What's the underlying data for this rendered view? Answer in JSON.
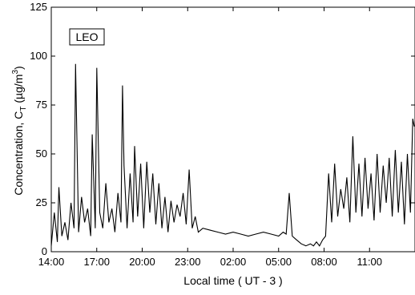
{
  "chart_data": {
    "type": "line",
    "title": "",
    "xlabel": "Local time ( UT - 3 )",
    "ylabel_main": "Concentration, C",
    "ylabel_sub": "T",
    "ylabel_unit_pre": " (µg/m",
    "ylabel_unit_sup": "3",
    "ylabel_unit_post": ")",
    "ylim": [
      0,
      125
    ],
    "xlim": [
      14.0,
      38.0
    ],
    "x_ticks": [
      {
        "value": 14,
        "label": "14:00"
      },
      {
        "value": 17,
        "label": "17:00"
      },
      {
        "value": 20,
        "label": "20:00"
      },
      {
        "value": 23,
        "label": "23:00"
      },
      {
        "value": 26,
        "label": "02:00"
      },
      {
        "value": 29,
        "label": "05:00"
      },
      {
        "value": 32,
        "label": "08:00"
      },
      {
        "value": 35,
        "label": "11:00"
      }
    ],
    "y_ticks": [
      0,
      25,
      50,
      75,
      100,
      125
    ],
    "legend": "LEO",
    "legend_position": "top-left",
    "grid": false,
    "series": [
      {
        "x": [
          14.0,
          14.2,
          14.4,
          14.5,
          14.7,
          14.9,
          15.1,
          15.3,
          15.5,
          15.6,
          15.8,
          16.0,
          16.2,
          16.4,
          16.6,
          16.7,
          16.9,
          17.0,
          17.2,
          17.4,
          17.6,
          17.8,
          18.0,
          18.2,
          18.4,
          18.6,
          18.7,
          18.8,
          19.0,
          19.2,
          19.4,
          19.5,
          19.7,
          19.9,
          20.1,
          20.3,
          20.5,
          20.7,
          20.9,
          21.1,
          21.3,
          21.5,
          21.7,
          21.9,
          22.1,
          22.3,
          22.5,
          22.7,
          22.9,
          23.1,
          23.3,
          23.5,
          23.7,
          24.0,
          24.5,
          25.0,
          25.5,
          26.0,
          26.5,
          27.0,
          27.5,
          28.0,
          28.5,
          29.0,
          29.3,
          29.5,
          29.7,
          29.9,
          30.2,
          30.5,
          30.8,
          31.1,
          31.3,
          31.5,
          31.7,
          31.9,
          32.1,
          32.3,
          32.5,
          32.7,
          32.9,
          33.1,
          33.3,
          33.5,
          33.7,
          33.9,
          34.1,
          34.3,
          34.5,
          34.7,
          34.9,
          35.1,
          35.3,
          35.5,
          35.7,
          35.9,
          36.1,
          36.3,
          36.5,
          36.7,
          36.9,
          37.1,
          37.3,
          37.5,
          37.7,
          37.85,
          37.95
        ],
        "y": [
          3,
          20,
          5,
          33,
          8,
          15,
          6,
          25,
          12,
          96,
          10,
          28,
          15,
          22,
          8,
          60,
          12,
          94,
          20,
          12,
          35,
          15,
          22,
          10,
          30,
          15,
          85,
          44,
          12,
          40,
          15,
          54,
          18,
          45,
          12,
          46,
          20,
          40,
          14,
          35,
          12,
          28,
          10,
          26,
          15,
          24,
          18,
          30,
          14,
          42,
          12,
          18,
          10,
          12,
          11,
          10,
          9,
          10,
          9,
          8,
          9,
          10,
          9,
          8,
          10,
          9,
          30,
          8,
          6,
          4,
          3,
          4,
          3,
          5,
          3,
          6,
          8,
          40,
          15,
          45,
          18,
          32,
          22,
          38,
          15,
          59,
          20,
          45,
          18,
          48,
          22,
          40,
          16,
          50,
          20,
          44,
          25,
          48,
          18,
          52,
          20,
          46,
          14,
          50,
          20,
          68,
          64
        ]
      }
    ]
  }
}
